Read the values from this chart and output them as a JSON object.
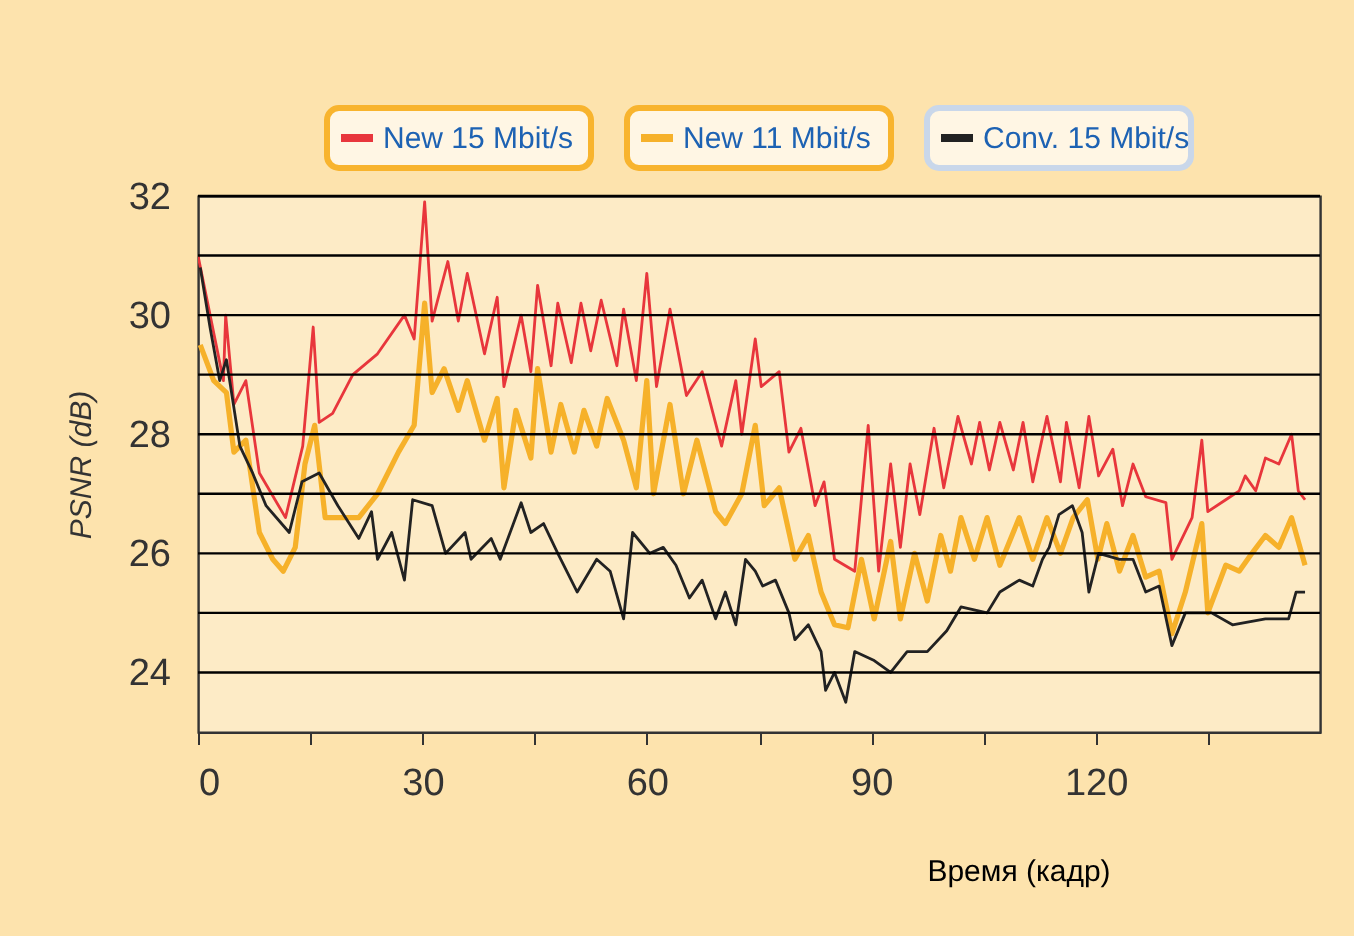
{
  "chart_data": {
    "type": "line",
    "xlabel": "Время (кадр)",
    "ylabel": "PSNR (dB)",
    "xlim": [
      0,
      150
    ],
    "ylim": [
      23,
      32
    ],
    "xticks": [
      0,
      {
        "value": 15,
        "label": null
      },
      30,
      {
        "value": 45,
        "label": null
      },
      60,
      {
        "value": 75,
        "label": null
      },
      90,
      {
        "value": 105,
        "label": null
      },
      120,
      {
        "value": 135,
        "label": null
      }
    ],
    "yticks": [
      24,
      {
        "value": 25,
        "label": null
      },
      26,
      {
        "value": 27,
        "label": null
      },
      28,
      {
        "value": 29,
        "label": null
      },
      30,
      {
        "value": 31,
        "label": null
      },
      32
    ],
    "grid": "y",
    "legend": "top",
    "series": [
      {
        "name": "New 15 Mbit/s",
        "color": "#e8363c",
        "x": [
          0,
          3.4,
          3.7,
          4.8,
          6.4,
          8.2,
          11.7,
          14,
          15.4,
          16.2,
          18,
          20.7,
          24,
          27.6,
          28.9,
          30.3,
          31.3,
          33.4,
          34.8,
          36,
          38.3,
          40,
          40.9,
          43.2,
          44.5,
          45.4,
          47.2,
          48.1,
          49.9,
          51.2,
          52.5,
          53.9,
          56,
          56.9,
          58.6,
          60,
          61.3,
          63.1,
          65.3,
          67.4,
          70,
          71.9,
          72.7,
          74.5,
          75.3,
          77.7,
          79,
          80.6,
          82.5,
          83.7,
          85.1,
          87.8,
          89.6,
          91,
          92.6,
          93.9,
          95.2,
          96.5,
          98.4,
          99.7,
          101.6,
          103.4,
          104.5,
          105.8,
          107.2,
          109,
          110.3,
          111.6,
          113.5,
          115.3,
          116.1,
          117.8,
          119.1,
          120.4,
          122.3,
          123.6,
          125,
          126.7,
          129.4,
          130.2,
          132.9,
          134.2,
          135,
          137.4,
          139.2,
          140,
          141.4,
          142.7,
          144.5,
          146.2,
          147.1,
          148
        ],
        "values": [
          31.0,
          28.9,
          30.0,
          28.5,
          28.9,
          27.35,
          26.6,
          27.8,
          29.8,
          28.2,
          28.35,
          29.0,
          29.35,
          30.0,
          29.6,
          31.9,
          29.9,
          30.9,
          29.9,
          30.7,
          29.35,
          30.3,
          28.8,
          30.0,
          29.05,
          30.5,
          29.15,
          30.2,
          29.2,
          30.2,
          29.4,
          30.25,
          29.15,
          30.1,
          28.9,
          30.7,
          28.8,
          30.1,
          28.65,
          29.05,
          27.8,
          28.9,
          28.0,
          29.6,
          28.8,
          29.05,
          27.7,
          28.1,
          26.8,
          27.2,
          25.9,
          25.7,
          28.15,
          25.7,
          27.5,
          26.1,
          27.5,
          26.65,
          28.1,
          27.1,
          28.3,
          27.5,
          28.2,
          27.4,
          28.2,
          27.4,
          28.2,
          27.2,
          28.3,
          27.2,
          28.2,
          27.1,
          28.3,
          27.3,
          27.75,
          26.8,
          27.5,
          26.95,
          26.85,
          25.9,
          26.6,
          27.9,
          26.7,
          26.9,
          27.05,
          27.3,
          27.05,
          27.6,
          27.5,
          28.0,
          27.05,
          26.9
        ]
      },
      {
        "name": "New 11 Mbit/s",
        "color": "#f6b12a",
        "x": [
          0.3,
          2.1,
          3.8,
          4.8,
          6.4,
          8.2,
          10,
          11.4,
          13,
          14.3,
          15.6,
          17,
          21.5,
          24,
          26.8,
          28.9,
          30.3,
          31.3,
          32.9,
          34.8,
          36,
          38.3,
          40,
          40.9,
          42.5,
          44.5,
          45.4,
          47.2,
          48.5,
          50.3,
          51.6,
          53.3,
          54.7,
          56.9,
          58.6,
          60,
          60.9,
          63.1,
          64.9,
          66.7,
          69.2,
          70.5,
          72.7,
          74.5,
          75.7,
          77.7,
          79.8,
          81.6,
          83.3,
          85.1,
          86.9,
          88.7,
          90.4,
          92.6,
          93.9,
          95.8,
          97.5,
          99.3,
          100.6,
          102,
          103.8,
          105.5,
          107.2,
          109.8,
          111.6,
          113.5,
          115.3,
          117,
          118.9,
          120.3,
          121.5,
          123.2,
          125,
          126.7,
          128.5,
          130.2,
          132,
          134.2,
          135,
          137.4,
          139.2,
          140.9,
          142.7,
          144.5,
          146.2,
          148
        ],
        "values": [
          29.5,
          28.9,
          28.7,
          27.7,
          27.9,
          26.35,
          25.9,
          25.7,
          26.1,
          27.5,
          28.15,
          26.6,
          26.6,
          27.0,
          27.7,
          28.15,
          30.2,
          28.7,
          29.1,
          28.4,
          28.9,
          27.9,
          28.6,
          27.1,
          28.4,
          27.6,
          29.1,
          27.7,
          28.5,
          27.7,
          28.4,
          27.8,
          28.6,
          27.9,
          27.1,
          28.9,
          27.0,
          28.5,
          27.0,
          27.9,
          26.7,
          26.5,
          27.0,
          28.15,
          26.8,
          27.1,
          25.9,
          26.3,
          25.35,
          24.8,
          24.75,
          25.9,
          24.9,
          26.2,
          24.9,
          26.0,
          25.2,
          26.3,
          25.7,
          26.6,
          25.9,
          26.6,
          25.8,
          26.6,
          25.9,
          26.6,
          26.0,
          26.6,
          26.9,
          25.9,
          26.5,
          25.7,
          26.3,
          25.6,
          25.7,
          24.65,
          25.35,
          26.5,
          25.0,
          25.8,
          25.7,
          26.0,
          26.3,
          26.1,
          26.6,
          25.8
        ]
      },
      {
        "name": "Conv. 15 Mbit/s",
        "color": "#222222",
        "x": [
          0.3,
          1.6,
          2.9,
          3.8,
          5.6,
          7.3,
          9.1,
          12.2,
          13.9,
          16.2,
          18.7,
          21.5,
          23.2,
          24,
          25.9,
          27.6,
          28.7,
          31.3,
          33.1,
          35.7,
          36.5,
          39.2,
          40.4,
          43.2,
          44.5,
          46.2,
          48.1,
          50.7,
          53.3,
          55.1,
          56.9,
          58.1,
          60.4,
          62.2,
          63.9,
          65.7,
          67.4,
          69.2,
          70.5,
          71.9,
          73.2,
          74.5,
          75.5,
          77.2,
          79,
          79.8,
          81.6,
          83.3,
          83.9,
          85.1,
          86.6,
          87.8,
          90.4,
          92.6,
          94.8,
          97.5,
          100.1,
          102,
          105.5,
          107.2,
          109.8,
          111.6,
          112.9,
          113.8,
          115.1,
          116.9,
          118.2,
          119.1,
          120.4,
          123.2,
          125,
          126.7,
          128.5,
          130.2,
          132,
          135.5,
          138.3,
          142.7,
          145.8,
          146.8,
          148
        ],
        "values": [
          30.8,
          29.8,
          28.9,
          29.25,
          27.8,
          27.35,
          26.8,
          26.35,
          27.2,
          27.35,
          26.8,
          26.25,
          26.7,
          25.9,
          26.35,
          25.55,
          26.9,
          26.8,
          26.0,
          26.35,
          25.9,
          26.25,
          25.9,
          26.85,
          26.35,
          26.5,
          26.0,
          25.35,
          25.9,
          25.7,
          24.9,
          26.35,
          26.0,
          26.1,
          25.8,
          25.25,
          25.55,
          24.9,
          25.35,
          24.8,
          25.9,
          25.7,
          25.45,
          25.55,
          25.0,
          24.55,
          24.8,
          24.35,
          23.7,
          24.0,
          23.5,
          24.35,
          24.2,
          24.0,
          24.35,
          24.35,
          24.7,
          25.1,
          25.0,
          25.35,
          25.55,
          25.45,
          25.9,
          26.1,
          26.65,
          26.8,
          26.35,
          25.35,
          26.0,
          25.9,
          25.9,
          25.35,
          25.45,
          24.45,
          25.0,
          25.0,
          24.8,
          24.9,
          24.9,
          25.35,
          25.35
        ]
      }
    ]
  }
}
